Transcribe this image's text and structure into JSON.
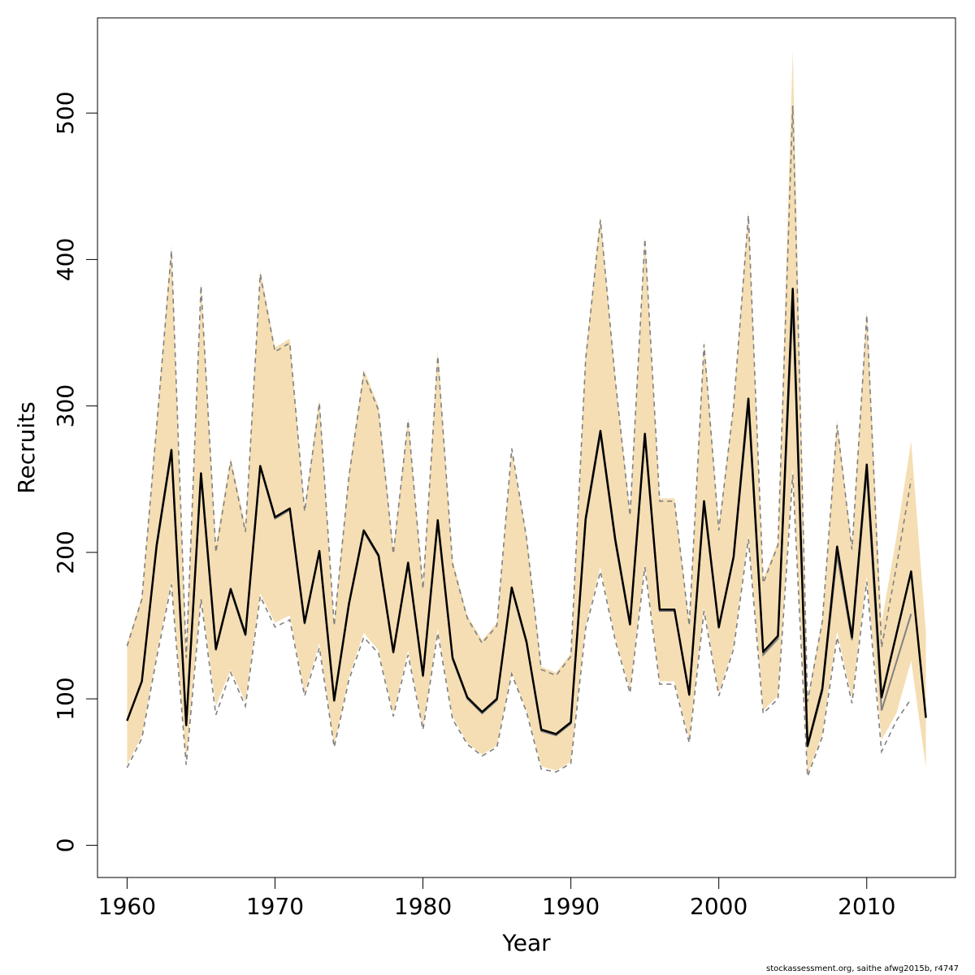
{
  "chart_data": {
    "type": "line",
    "xlabel": "Year",
    "ylabel": "Recruits",
    "xlim": [
      1958,
      2016
    ],
    "ylim": [
      -22,
      565
    ],
    "x_ticks": [
      1960,
      1970,
      1980,
      1990,
      2000,
      2010
    ],
    "y_ticks": [
      0,
      100,
      200,
      300,
      400,
      500
    ],
    "grid": false,
    "colors": {
      "band": "#F5DEB3",
      "current": "#000000",
      "previous": "#808080"
    },
    "x": [
      1960,
      1961,
      1962,
      1963,
      1964,
      1965,
      1966,
      1967,
      1968,
      1969,
      1970,
      1971,
      1972,
      1973,
      1974,
      1975,
      1976,
      1977,
      1978,
      1979,
      1980,
      1981,
      1982,
      1983,
      1984,
      1985,
      1986,
      1987,
      1988,
      1989,
      1990,
      1991,
      1992,
      1993,
      1994,
      1995,
      1996,
      1997,
      1998,
      1999,
      2000,
      2001,
      2002,
      2003,
      2004,
      2005,
      2006,
      2007,
      2008,
      2009,
      2010,
      2011,
      2012,
      2013,
      2014
    ],
    "series": [
      {
        "role": "current_estimate",
        "values": [
          85,
          112,
          205,
          270,
          82,
          254,
          134,
          175,
          144,
          259,
          224,
          230,
          152,
          201,
          99,
          165,
          215,
          198,
          132,
          193,
          116,
          222,
          128,
          101,
          91,
          100,
          176,
          139,
          79,
          76,
          84,
          223,
          283,
          209,
          151,
          281,
          161,
          161,
          103,
          235,
          149,
          197,
          305,
          132,
          143,
          380,
          68,
          107,
          204,
          142,
          260,
          101,
          144,
          187,
          87
        ]
      },
      {
        "role": "previous_estimate",
        "values": [
          85,
          112,
          203,
          268,
          82,
          252,
          133,
          174,
          143,
          258,
          223,
          229,
          151,
          200,
          98,
          164,
          214,
          197,
          131,
          192,
          115,
          220,
          127,
          100,
          90,
          99,
          175,
          138,
          78,
          75,
          83,
          221,
          281,
          207,
          150,
          279,
          160,
          160,
          102,
          233,
          148,
          196,
          300,
          130,
          141,
          370,
          67,
          105,
          198,
          140,
          255,
          92,
          125,
          158,
          null
        ]
      }
    ],
    "bands": [
      {
        "role": "current_ci",
        "lower": [
          55,
          75,
          130,
          180,
          58,
          170,
          95,
          120,
          98,
          172,
          152,
          157,
          104,
          138,
          68,
          115,
          145,
          133,
          90,
          133,
          80,
          148,
          88,
          70,
          62,
          68,
          118,
          92,
          54,
          51,
          57,
          150,
          190,
          142,
          106,
          192,
          112,
          112,
          72,
          162,
          104,
          136,
          212,
          92,
          102,
          258,
          48,
          76,
          146,
          100,
          184,
          72,
          90,
          126,
          53
        ],
        "upper": [
          138,
          170,
          290,
          410,
          132,
          385,
          205,
          265,
          218,
          393,
          340,
          346,
          230,
          305,
          152,
          255,
          325,
          300,
          202,
          292,
          178,
          338,
          195,
          157,
          140,
          152,
          270,
          212,
          122,
          118,
          131,
          335,
          430,
          320,
          228,
          416,
          237,
          237,
          152,
          345,
          218,
          302,
          434,
          182,
          207,
          543,
          100,
          155,
          290,
          205,
          366,
          152,
          210,
          276,
          145
        ]
      },
      {
        "role": "previous_ci",
        "lower": [
          53,
          73,
          128,
          178,
          55,
          168,
          89,
          118,
          95,
          170,
          149,
          154,
          102,
          135,
          67,
          113,
          142,
          131,
          88,
          130,
          79,
          145,
          86,
          69,
          61,
          67,
          117,
          91,
          52,
          50,
          56,
          148,
          187,
          140,
          104,
          190,
          110,
          110,
          70,
          160,
          102,
          134,
          209,
          90,
          100,
          253,
          47,
          74,
          142,
          97,
          180,
          64,
          85,
          100,
          null
        ],
        "upper": [
          136,
          168,
          286,
          406,
          128,
          382,
          200,
          262,
          214,
          390,
          337,
          343,
          228,
          302,
          150,
          252,
          322,
          297,
          199,
          290,
          175,
          334,
          192,
          155,
          138,
          150,
          271,
          210,
          120,
          116,
          129,
          332,
          427,
          318,
          225,
          414,
          235,
          235,
          150,
          342,
          215,
          300,
          430,
          179,
          205,
          505,
          98,
          153,
          287,
          202,
          362,
          135,
          190,
          250,
          null
        ]
      }
    ]
  },
  "footer": {
    "text": "stockassessment.org, saithe  afwg2015b, r4747"
  }
}
